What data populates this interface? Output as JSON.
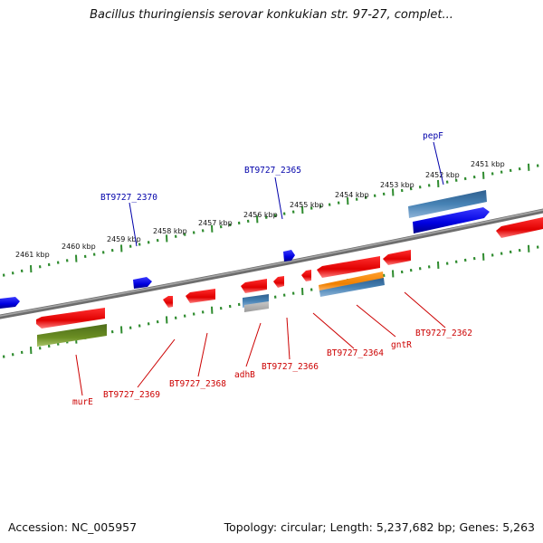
{
  "header": {
    "title": "Bacillus thuringiensis serovar konkukian str. 97-27, complet..."
  },
  "footer": {
    "accession": "Accession: NC_005957",
    "stats": "Topology: circular; Length: 5,237,682 bp; Genes: 5,263"
  },
  "colors": {
    "backbone": "#777777",
    "ruler": "#2e8b2e",
    "forward_gene": "#0000ee",
    "reverse_gene": "#ee0000",
    "label_forward": "#0000aa",
    "label_reverse": "#cc0000"
  },
  "ruler_labels": [
    "2461 kbp",
    "2460 kbp",
    "2459 kbp",
    "2458 kbp",
    "2457 kbp",
    "2456 kbp",
    "2455 kbp",
    "2454 kbp",
    "2453 kbp",
    "2452 kbp",
    "2451 kbp"
  ],
  "gene_labels": {
    "forward": [
      "BT9727_2370",
      "BT9727_2365",
      "pepF"
    ],
    "reverse": [
      "murE",
      "BT9727_2369",
      "BT9727_2368",
      "adhB",
      "BT9727_2366",
      "BT9727_2364",
      "gntR",
      "BT9727_2362"
    ]
  }
}
